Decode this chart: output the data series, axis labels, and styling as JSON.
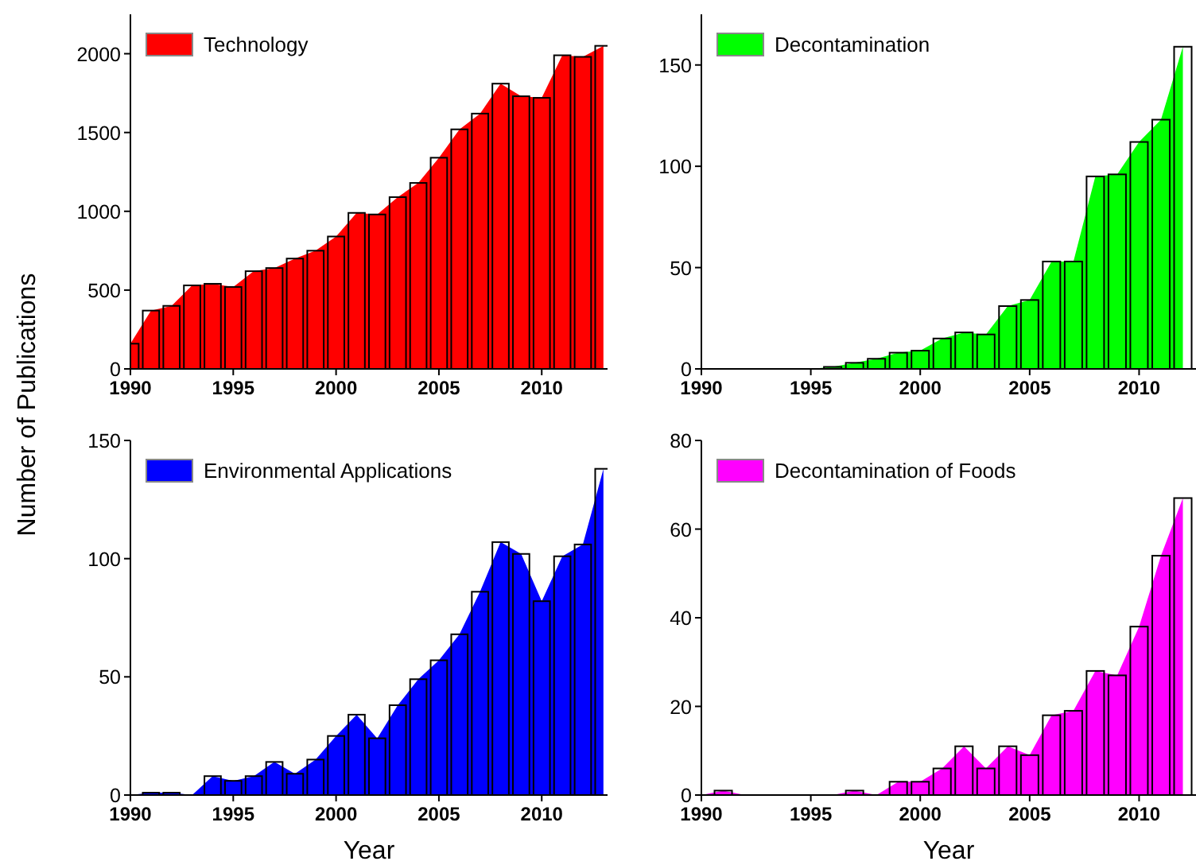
{
  "chart_data": [
    {
      "type": "area",
      "x": [
        1990,
        1991,
        1992,
        1993,
        1994,
        1995,
        1996,
        1997,
        1998,
        1999,
        2000,
        2001,
        2002,
        2003,
        2004,
        2005,
        2006,
        2007,
        2008,
        2009,
        2010,
        2011,
        2012,
        2013
      ],
      "series": [
        {
          "name": "Technology",
          "color": "#ff0000",
          "values": [
            160,
            370,
            400,
            530,
            540,
            520,
            620,
            640,
            700,
            750,
            840,
            990,
            980,
            1090,
            1180,
            1340,
            1520,
            1620,
            1810,
            1730,
            1720,
            1990,
            1980,
            2050
          ]
        },
        {
          "type": "bar",
          "color": "#000000",
          "values": [
            160,
            370,
            400,
            530,
            540,
            520,
            620,
            640,
            700,
            750,
            840,
            990,
            980,
            1090,
            1180,
            1340,
            1520,
            1620,
            1810,
            1730,
            1720,
            1990,
            1980,
            2050
          ]
        }
      ],
      "xlim": [
        1990,
        2013.2
      ],
      "xticks": [
        1990,
        1995,
        2000,
        2005,
        2010
      ],
      "ylim": [
        0,
        2250
      ],
      "yticks": [
        0,
        500,
        1000,
        1500,
        2000
      ],
      "ylabel": "Number of Publications",
      "legend": "top left",
      "grid": false
    },
    {
      "type": "area",
      "x": [
        1990,
        1991,
        1992,
        1993,
        1994,
        1995,
        1996,
        1997,
        1998,
        1999,
        2000,
        2001,
        2002,
        2003,
        2004,
        2005,
        2006,
        2007,
        2008,
        2009,
        2010,
        2011,
        2012
      ],
      "series": [
        {
          "name": "Decontamination",
          "color": "#00ff00",
          "values": [
            0,
            0,
            0,
            0,
            0,
            0,
            1,
            3,
            5,
            8,
            9,
            15,
            18,
            17,
            31,
            34,
            53,
            53,
            95,
            96,
            112,
            123,
            159
          ]
        },
        {
          "type": "bar",
          "color": "#000000",
          "values": [
            0,
            0,
            0,
            0,
            0,
            0,
            1,
            3,
            5,
            8,
            9,
            15,
            18,
            17,
            31,
            34,
            53,
            53,
            95,
            96,
            112,
            123,
            159
          ]
        }
      ],
      "xlim": [
        1990,
        2012.6
      ],
      "xticks": [
        1990,
        1995,
        2000,
        2005,
        2010
      ],
      "ylim": [
        0,
        175
      ],
      "yticks": [
        0,
        50,
        100,
        150
      ],
      "legend": "top left",
      "grid": false
    },
    {
      "type": "area",
      "x": [
        1990,
        1991,
        1992,
        1993,
        1994,
        1995,
        1996,
        1997,
        1998,
        1999,
        2000,
        2001,
        2002,
        2003,
        2004,
        2005,
        2006,
        2007,
        2008,
        2009,
        2010,
        2011,
        2012,
        2013
      ],
      "series": [
        {
          "name": "Environmental Applications",
          "color": "#0000ff",
          "values": [
            0,
            1,
            1,
            0,
            8,
            6,
            8,
            14,
            9,
            15,
            25,
            34,
            24,
            38,
            49,
            57,
            68,
            86,
            107,
            102,
            82,
            101,
            106,
            138
          ]
        },
        {
          "type": "bar",
          "color": "#000000",
          "values": [
            0,
            1,
            1,
            0,
            8,
            6,
            8,
            14,
            9,
            15,
            25,
            34,
            24,
            38,
            49,
            57,
            68,
            86,
            107,
            102,
            82,
            101,
            106,
            138
          ]
        }
      ],
      "xlim": [
        1990,
        2013.2
      ],
      "xticks": [
        1990,
        1995,
        2000,
        2005,
        2010
      ],
      "ylim": [
        0,
        150
      ],
      "yticks": [
        0,
        50,
        100,
        150
      ],
      "xlabel": "Year",
      "legend": "top left",
      "grid": false
    },
    {
      "type": "area",
      "x": [
        1990,
        1991,
        1992,
        1993,
        1994,
        1995,
        1996,
        1997,
        1998,
        1999,
        2000,
        2001,
        2002,
        2003,
        2004,
        2005,
        2006,
        2007,
        2008,
        2009,
        2010,
        2011,
        2012
      ],
      "series": [
        {
          "name": "Decontamination of Foods",
          "color": "#ff00ff",
          "values": [
            0,
            1,
            0,
            0,
            0,
            0,
            0,
            1,
            0,
            3,
            3,
            6,
            11,
            6,
            11,
            9,
            18,
            19,
            28,
            27,
            38,
            54,
            67
          ]
        },
        {
          "type": "bar",
          "color": "#000000",
          "values": [
            0,
            1,
            0,
            0,
            0,
            0,
            0,
            1,
            0,
            3,
            3,
            6,
            11,
            6,
            11,
            9,
            18,
            19,
            28,
            27,
            38,
            54,
            67
          ]
        }
      ],
      "xlim": [
        1990,
        2012.6
      ],
      "xticks": [
        1990,
        1995,
        2000,
        2005,
        2010
      ],
      "ylim": [
        0,
        80
      ],
      "yticks": [
        0,
        20,
        40,
        60,
        80
      ],
      "xlabel": "Year",
      "legend": "top left",
      "grid": false
    }
  ]
}
